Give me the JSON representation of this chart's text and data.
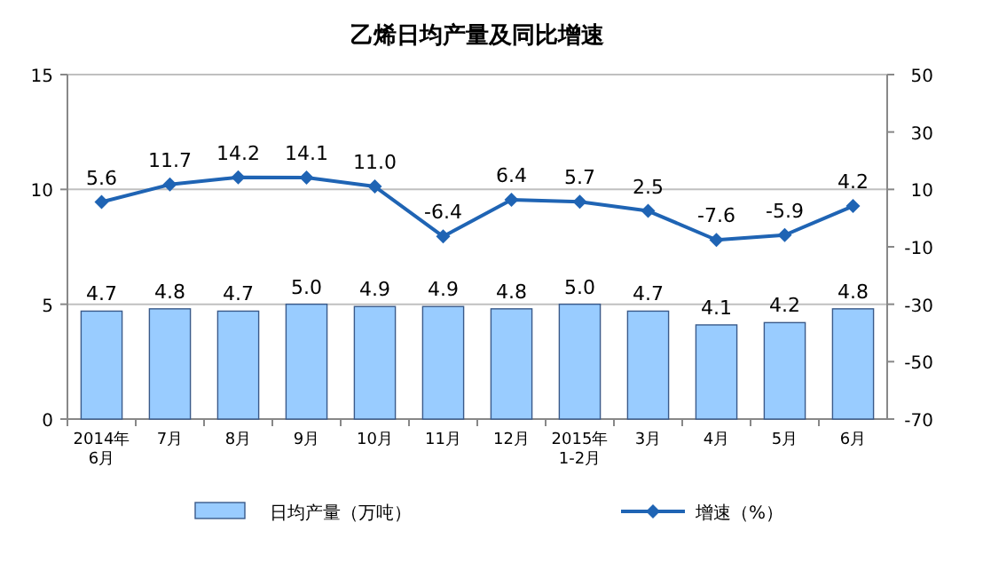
{
  "chart_data": {
    "type": "bar",
    "title": "乙烯日均产量及同比增速",
    "categories": [
      "2014年\n6月",
      "7月",
      "8月",
      "9月",
      "10月",
      "11月",
      "12月",
      "2015年\n1-2月",
      "3月",
      "4月",
      "5月",
      "6月"
    ],
    "series": [
      {
        "name": "日均产量（万吨）",
        "color": "#99ccff",
        "values": [
          4.7,
          4.8,
          4.7,
          5.0,
          4.9,
          4.9,
          4.8,
          5.0,
          4.7,
          4.1,
          4.2,
          4.8
        ],
        "value_labels": [
          "4.7",
          "4.8",
          "4.7",
          "5.0",
          "4.9",
          "4.9",
          "4.8",
          "5.0",
          "4.7",
          "4.1",
          "4.2",
          "4.8"
        ]
      },
      {
        "name": "增速（%）",
        "type": "line",
        "axis": "y2",
        "color": "#1f64b4",
        "marker": "diamond",
        "values": [
          5.6,
          11.7,
          14.2,
          14.1,
          11.0,
          -6.4,
          6.4,
          5.7,
          2.5,
          -7.6,
          -5.9,
          4.2
        ],
        "value_labels": [
          "5.6",
          "11.7",
          "14.2",
          "14.1",
          "11.0",
          "-6.4",
          "6.4",
          "5.7",
          "2.5",
          "-7.6",
          "-5.9",
          "4.2"
        ]
      }
    ],
    "ylim": [
      0,
      15
    ],
    "yticks": [
      0,
      5,
      10,
      15
    ],
    "y2lim": [
      -70,
      50
    ],
    "y2ticks": [
      -70,
      -50,
      -30,
      -10,
      10,
      30,
      50
    ],
    "grid": "y",
    "legend": "bottom"
  }
}
